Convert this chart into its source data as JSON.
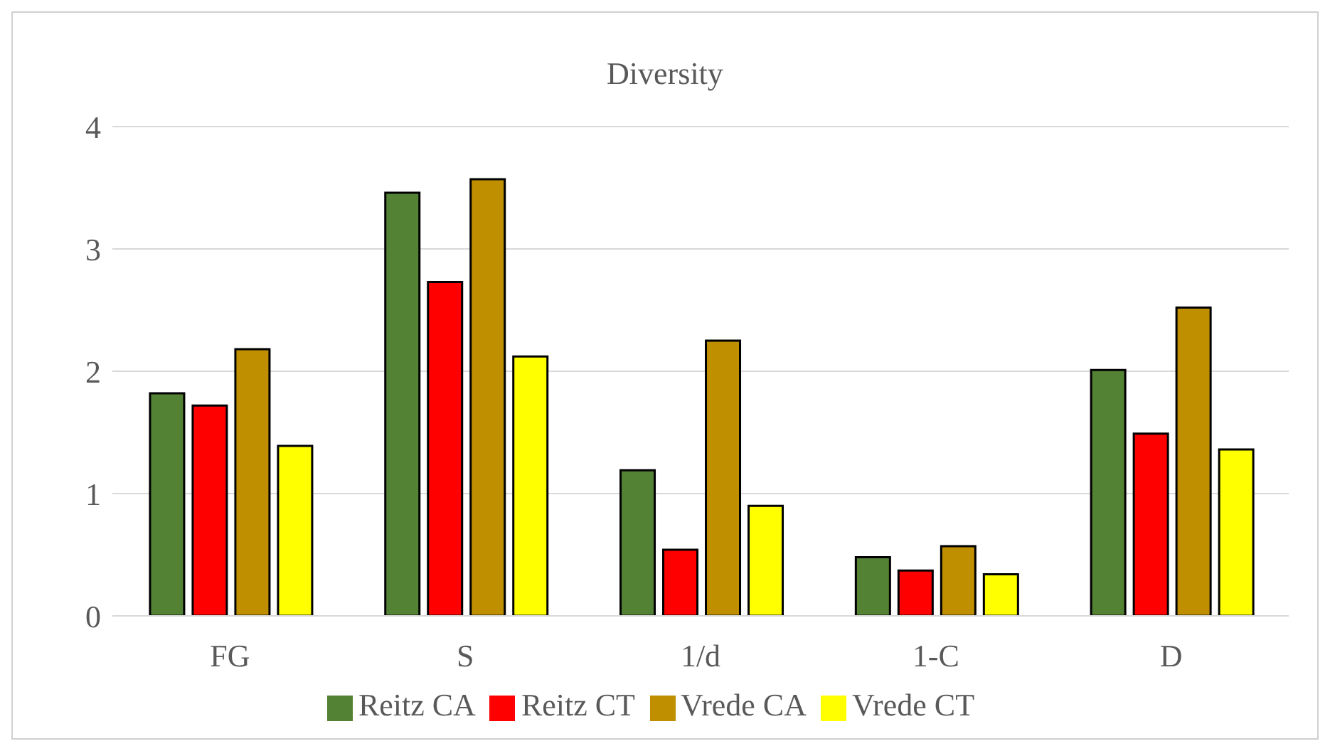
{
  "chart_data": {
    "type": "bar",
    "title": "Diversity",
    "categories": [
      "FG",
      "S",
      "1/d",
      "1-C",
      "D"
    ],
    "series": [
      {
        "name": "Reitz CA",
        "color": "#548235",
        "values": [
          1.82,
          3.46,
          1.19,
          0.48,
          2.01
        ]
      },
      {
        "name": "Reitz CT",
        "color": "#ff0000",
        "values": [
          1.72,
          2.73,
          0.54,
          0.37,
          1.49
        ]
      },
      {
        "name": "Vrede CA",
        "color": "#bf8f00",
        "values": [
          2.18,
          3.57,
          2.25,
          0.57,
          2.52
        ]
      },
      {
        "name": "Vrede CT",
        "color": "#ffff00",
        "values": [
          1.39,
          2.12,
          0.9,
          0.34,
          1.36
        ]
      }
    ],
    "ylim": [
      0,
      4
    ],
    "yticks": [
      0,
      1,
      2,
      3,
      4
    ],
    "grid": "y",
    "legend": "bottom"
  }
}
